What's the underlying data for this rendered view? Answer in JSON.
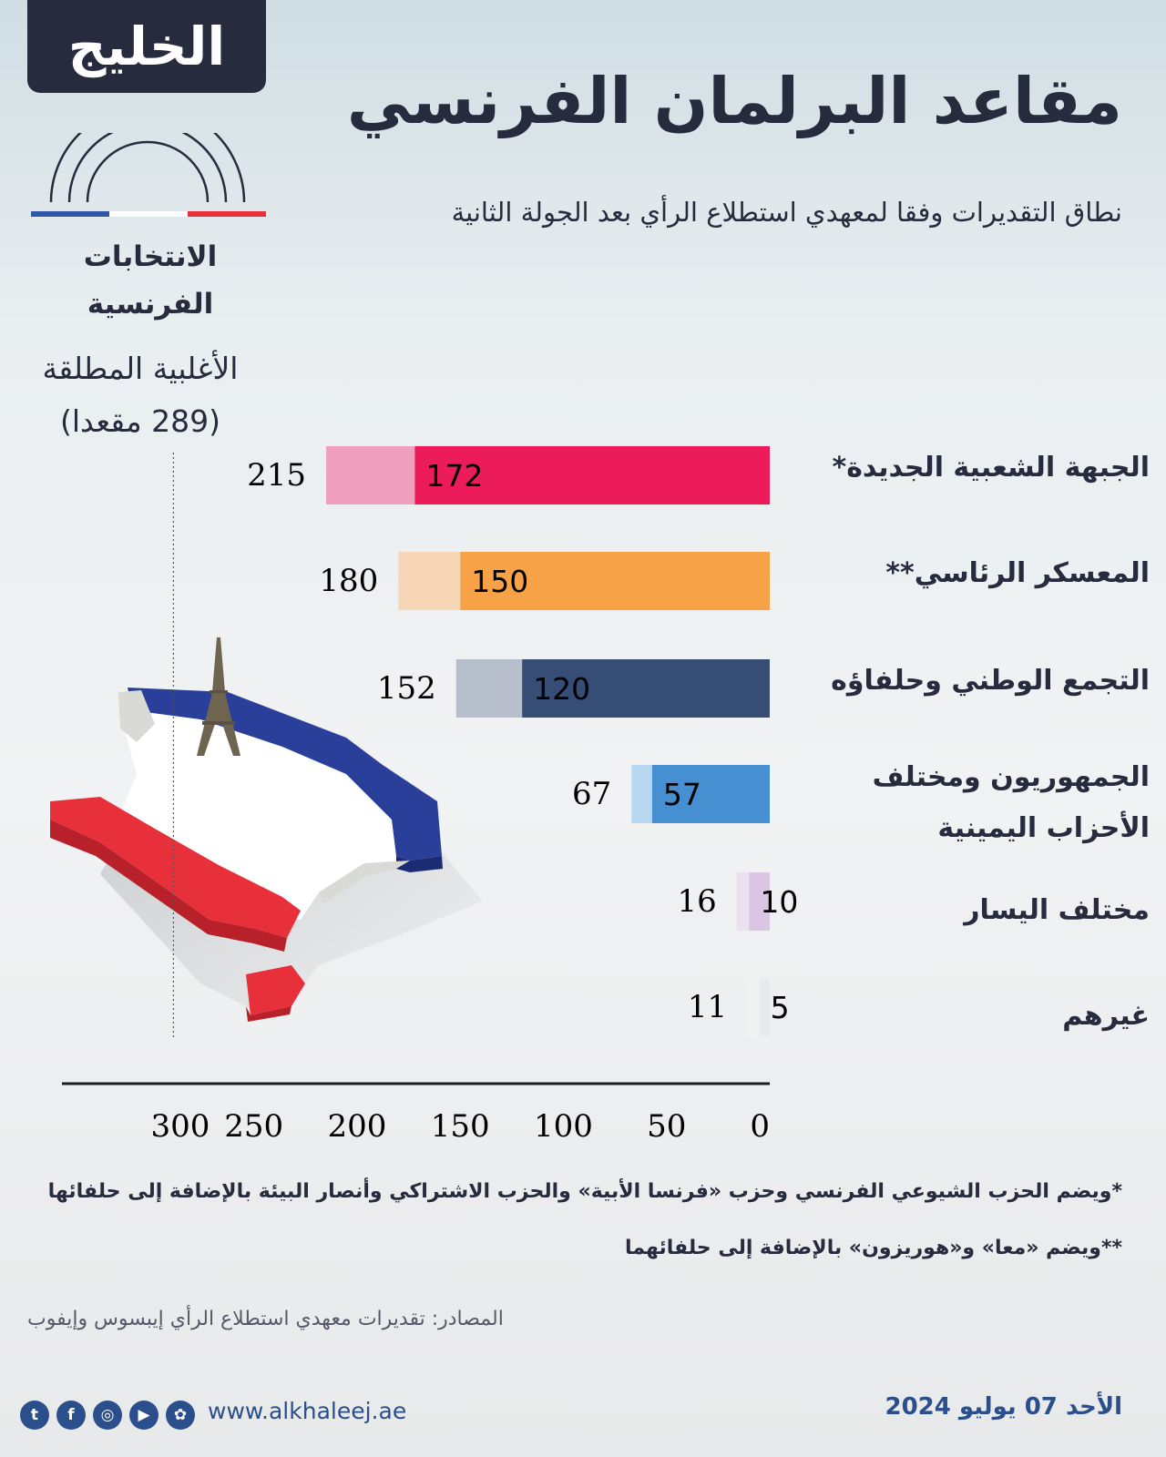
{
  "logo": {
    "text": "الخليج"
  },
  "title": "مقاعد البرلمان الفرنسي",
  "subtitle": "نطاق التقديرات وفقا لمعهدي استطلاع الرأي بعد الجولة الثانية",
  "elections_label": {
    "line1": "الانتخابات",
    "line2": "الفرنسية"
  },
  "majority": {
    "line1": "الأغلبية المطلقة",
    "line2": "(289 مقعدا)"
  },
  "chart_data": {
    "type": "bar",
    "orientation": "horizontal-right-to-left",
    "categories": [
      "الجبهة الشعبية الجديدة*",
      "المعسكر الرئاسي**",
      "التجمع الوطني وحلفاؤه",
      "الجمهوريون ومختلف الأحزاب اليمينية",
      "مختلف اليسار",
      "غيرهم"
    ],
    "category_lines": [
      [
        "الجبهة الشعبية الجديدة*"
      ],
      [
        "المعسكر الرئاسي**"
      ],
      [
        "التجمع الوطني وحلفاؤه"
      ],
      [
        "الجمهوريون ومختلف",
        "الأحزاب اليمينية"
      ],
      [
        "مختلف اليسار"
      ],
      [
        "غيرهم"
      ]
    ],
    "series": [
      {
        "values": [
          172,
          150,
          120,
          57,
          10,
          5
        ]
      },
      {
        "values": [
          215,
          180,
          152,
          67,
          16,
          11
        ]
      }
    ],
    "colors": {
      "main": [
        "#ec1b5a",
        "#f7a246",
        "#364e76",
        "#4690d2",
        "#dac5e3",
        "#e5ebeb"
      ],
      "range": [
        "#eea0bc",
        "#f6d6b5",
        "#b7bfcc",
        "#b7d8f0",
        "#ebe0ef",
        "#f0f2f2"
      ]
    },
    "xlim": [
      0,
      300
    ],
    "xticks": [
      0,
      50,
      100,
      150,
      200,
      250,
      300
    ],
    "reference_line": 289
  },
  "notes": {
    "note1": "*ويضم الحزب الشيوعي الفرنسي وحزب «فرنسا الأبية» والحزب الاشتراكي وأنصار البيئة بالإضافة إلى حلفائها",
    "note2": "**ويضم «معا» و«هوريزون» بالإضافة إلى حلفائهما"
  },
  "source": "المصادر: تقديرات معهدي استطلاع الرأي إيبسوس وإيفوب",
  "footer": {
    "website": "www.alkhaleej.ae",
    "date": "الأحد 07 يوليو 2024",
    "social_icons": [
      "twitter-icon",
      "facebook-icon",
      "instagram-icon",
      "youtube-icon",
      "snapchat-icon"
    ]
  }
}
